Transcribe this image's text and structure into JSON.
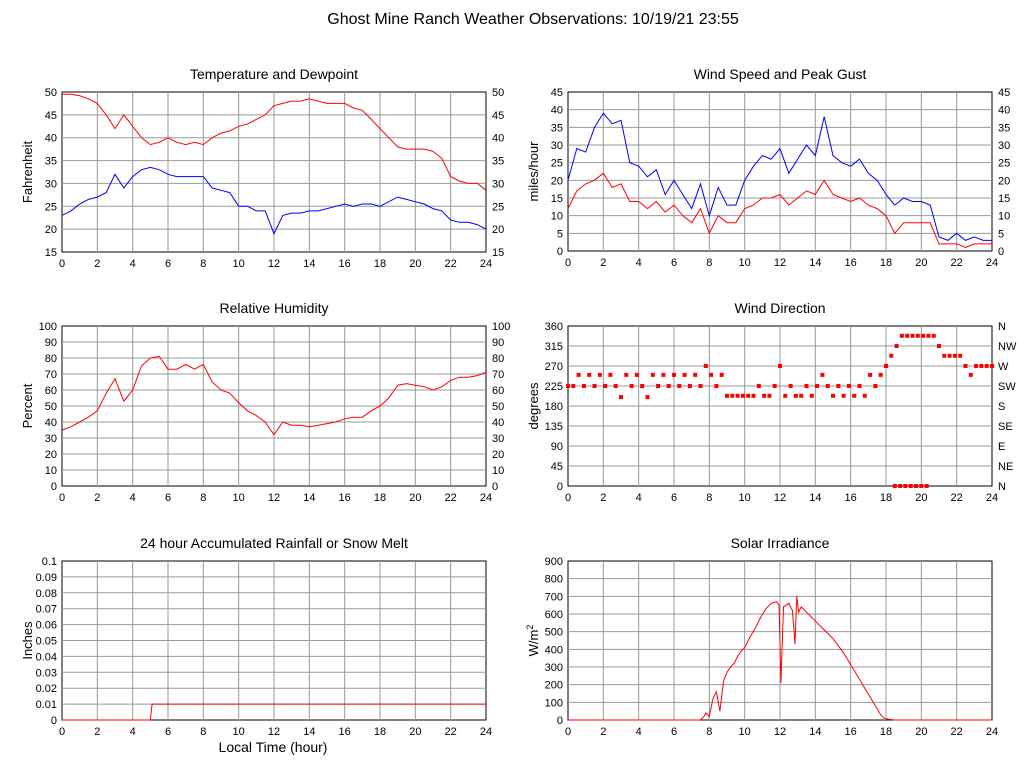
{
  "main_title": "Ghost Mine Ranch Weather Observations: 10/19/21 23:55",
  "x_axis_label": "Local Time (hour)",
  "colors": {
    "red": "#ff0000",
    "blue": "#0000ff",
    "grid": "#999999"
  },
  "chart_data": [
    {
      "id": "temp",
      "type": "line",
      "title": "Temperature and Dewpoint",
      "ylabel": "Fahrenheit",
      "xlim": [
        0,
        24
      ],
      "xticks": [
        "0",
        "2",
        "4",
        "6",
        "8",
        "10",
        "12",
        "14",
        "16",
        "18",
        "20",
        "22",
        "24"
      ],
      "ylim": [
        15,
        50
      ],
      "yticks": [
        "15",
        "20",
        "25",
        "30",
        "35",
        "40",
        "45",
        "50"
      ],
      "right_yticks": [
        "15",
        "20",
        "25",
        "30",
        "35",
        "40",
        "45",
        "50"
      ],
      "grid": true,
      "series": [
        {
          "color": "#ff0000",
          "x": [
            0,
            0.5,
            1,
            1.5,
            2,
            2.5,
            3,
            3.5,
            4,
            4.5,
            5,
            5.5,
            6,
            6.5,
            7,
            7.5,
            8,
            8.5,
            9,
            9.5,
            10,
            10.5,
            11,
            11.5,
            12,
            12.5,
            13,
            13.5,
            14,
            14.5,
            15,
            15.5,
            16,
            16.5,
            17,
            17.5,
            18,
            18.5,
            19,
            19.5,
            20,
            20.5,
            21,
            21.5,
            22,
            22.5,
            23,
            23.5,
            24
          ],
          "y": [
            49.5,
            49.5,
            49.2,
            48.5,
            47.5,
            45,
            42,
            45,
            42.5,
            40,
            38.5,
            39,
            40,
            39,
            38.5,
            39,
            38.5,
            40,
            41,
            41.5,
            42.5,
            43,
            44,
            45,
            47,
            47.5,
            48,
            48,
            48.5,
            48,
            47.5,
            47.5,
            47.5,
            46.5,
            46,
            44,
            42,
            40,
            38,
            37.5,
            37.5,
            37.5,
            37,
            35.5,
            31.5,
            30.5,
            30,
            30,
            28.5
          ]
        },
        {
          "color": "#0000ff",
          "x": [
            0,
            0.5,
            1,
            1.5,
            2,
            2.5,
            3,
            3.5,
            4,
            4.5,
            5,
            5.5,
            6,
            6.5,
            7,
            7.5,
            8,
            8.5,
            9,
            9.5,
            10,
            10.5,
            11,
            11.5,
            12,
            12.5,
            13,
            13.5,
            14,
            14.5,
            15,
            15.5,
            16,
            16.5,
            17,
            17.5,
            18,
            18.5,
            19,
            19.5,
            20,
            20.5,
            21,
            21.5,
            22,
            22.5,
            23,
            23.5,
            24
          ],
          "y": [
            23,
            24,
            25.5,
            26.5,
            27,
            28,
            32,
            29,
            31.5,
            33,
            33.5,
            33,
            32,
            31.5,
            31.5,
            31.5,
            31.5,
            29,
            28.5,
            28,
            25,
            25,
            24,
            24,
            19,
            23,
            23.5,
            23.5,
            24,
            24,
            24.5,
            25,
            25.5,
            25,
            25.5,
            25.5,
            25,
            26,
            27,
            26.5,
            26,
            25.5,
            24.5,
            24,
            22,
            21.5,
            21.5,
            21,
            20
          ]
        }
      ]
    },
    {
      "id": "wind",
      "type": "line",
      "title": "Wind Speed and Peak Gust",
      "ylabel": "miles/hour",
      "xlim": [
        0,
        24
      ],
      "xticks": [
        "0",
        "2",
        "4",
        "6",
        "8",
        "10",
        "12",
        "14",
        "16",
        "18",
        "20",
        "22",
        "24"
      ],
      "ylim": [
        0,
        45
      ],
      "yticks": [
        "0",
        "5",
        "10",
        "15",
        "20",
        "25",
        "30",
        "35",
        "40",
        "45"
      ],
      "right_yticks": [
        "0",
        "5",
        "10",
        "15",
        "20",
        "25",
        "30",
        "35",
        "40",
        "45"
      ],
      "grid": true,
      "series": [
        {
          "color": "#0000ff",
          "x": [
            0,
            0.5,
            1,
            1.5,
            2,
            2.5,
            3,
            3.5,
            4,
            4.5,
            5,
            5.5,
            6,
            6.5,
            7,
            7.5,
            8,
            8.5,
            9,
            9.5,
            10,
            10.5,
            11,
            11.5,
            12,
            12.5,
            13,
            13.5,
            14,
            14.5,
            15,
            15.5,
            16,
            16.5,
            17,
            17.5,
            18,
            18.5,
            19,
            19.5,
            20,
            20.5,
            21,
            21.5,
            22,
            22.5,
            23,
            23.5,
            24
          ],
          "y": [
            20,
            29,
            28,
            35,
            39,
            36,
            37,
            25,
            24,
            21,
            23,
            16,
            20,
            16,
            12,
            19,
            10,
            18,
            13,
            13,
            20,
            24,
            27,
            26,
            29,
            22,
            26,
            30,
            27,
            38,
            27,
            25,
            24,
            26,
            22,
            20,
            16,
            13,
            15,
            14,
            14,
            13,
            4,
            3,
            5,
            3,
            4,
            3,
            3
          ]
        },
        {
          "color": "#ff0000",
          "x": [
            0,
            0.5,
            1,
            1.5,
            2,
            2.5,
            3,
            3.5,
            4,
            4.5,
            5,
            5.5,
            6,
            6.5,
            7,
            7.5,
            8,
            8.5,
            9,
            9.5,
            10,
            10.5,
            11,
            11.5,
            12,
            12.5,
            13,
            13.5,
            14,
            14.5,
            15,
            15.5,
            16,
            16.5,
            17,
            17.5,
            18,
            18.5,
            19,
            19.5,
            20,
            20.5,
            21,
            21.5,
            22,
            22.5,
            23,
            23.5,
            24
          ],
          "y": [
            12,
            17,
            19,
            20,
            22,
            18,
            19,
            14,
            14,
            12,
            14,
            11,
            13,
            10,
            8,
            12,
            5,
            10,
            8,
            8,
            12,
            13,
            15,
            15,
            16,
            13,
            15,
            17,
            16,
            20,
            16,
            15,
            14,
            15,
            13,
            12,
            10,
            5,
            8,
            8,
            8,
            8,
            2,
            2,
            2,
            1,
            2,
            2,
            2
          ]
        }
      ]
    },
    {
      "id": "rh",
      "type": "line",
      "title": "Relative Humidity",
      "ylabel": "Percent",
      "xlim": [
        0,
        24
      ],
      "xticks": [
        "0",
        "2",
        "4",
        "6",
        "8",
        "10",
        "12",
        "14",
        "16",
        "18",
        "20",
        "22",
        "24"
      ],
      "ylim": [
        0,
        100
      ],
      "yticks": [
        "0",
        "10",
        "20",
        "30",
        "40",
        "50",
        "60",
        "70",
        "80",
        "90",
        "100"
      ],
      "right_yticks": [
        "0",
        "10",
        "20",
        "30",
        "40",
        "50",
        "60",
        "70",
        "80",
        "90",
        "100"
      ],
      "grid": true,
      "series": [
        {
          "color": "#ff0000",
          "x": [
            0,
            0.5,
            1,
            1.5,
            2,
            2.5,
            3,
            3.5,
            4,
            4.5,
            5,
            5.5,
            6,
            6.5,
            7,
            7.5,
            8,
            8.5,
            9,
            9.5,
            10,
            10.5,
            11,
            11.5,
            12,
            12.5,
            13,
            13.5,
            14,
            14.5,
            15,
            15.5,
            16,
            16.5,
            17,
            17.5,
            18,
            18.5,
            19,
            19.5,
            20,
            20.5,
            21,
            21.5,
            22,
            22.5,
            23,
            23.5,
            24
          ],
          "y": [
            35,
            37,
            40,
            43,
            47,
            58,
            67,
            53,
            60,
            75,
            80,
            81,
            73,
            73,
            76,
            73,
            76,
            65,
            60,
            58,
            52,
            47,
            44,
            40,
            32,
            40,
            38,
            38,
            37,
            38,
            39,
            40,
            42,
            43,
            43,
            47,
            50,
            55,
            63,
            64,
            63,
            62,
            60,
            62,
            66,
            68,
            68,
            69,
            71
          ]
        }
      ]
    },
    {
      "id": "dir",
      "type": "scatter",
      "title": "Wind Direction",
      "ylabel": "degrees",
      "xlim": [
        0,
        24
      ],
      "xticks": [
        "0",
        "2",
        "4",
        "6",
        "8",
        "10",
        "12",
        "14",
        "16",
        "18",
        "20",
        "22",
        "24"
      ],
      "ylim": [
        0,
        360
      ],
      "yticks": [
        "0",
        "45",
        "90",
        "135",
        "180",
        "225",
        "270",
        "315",
        "360"
      ],
      "right_yticks": [
        "N",
        "NE",
        "E",
        "SE",
        "S",
        "SW",
        "W",
        "NW",
        "N"
      ],
      "grid": true,
      "series": [
        {
          "color": "#ff0000",
          "x": [
            0,
            0.3,
            0.6,
            0.9,
            1.2,
            1.5,
            1.8,
            2.1,
            2.4,
            2.7,
            3.0,
            3.3,
            3.6,
            3.9,
            4.2,
            4.5,
            4.8,
            5.1,
            5.4,
            5.7,
            6.0,
            6.3,
            6.6,
            6.9,
            7.2,
            7.5,
            7.8,
            8.1,
            8.4,
            8.7,
            9.0,
            9.3,
            9.6,
            9.9,
            10.2,
            10.5,
            10.8,
            11.1,
            11.4,
            11.7,
            12.0,
            12.3,
            12.6,
            12.9,
            13.2,
            13.5,
            13.8,
            14.1,
            14.4,
            14.7,
            15.0,
            15.3,
            15.6,
            15.9,
            16.2,
            16.5,
            16.8,
            17.1,
            17.4,
            17.7,
            18.0,
            18.3,
            18.6,
            18.9,
            19.2,
            19.5,
            19.8,
            20.1,
            20.4,
            20.7,
            21.0,
            21.3,
            21.6,
            21.9,
            22.2,
            22.5,
            22.8,
            23.1,
            23.4,
            23.7,
            24.0
          ],
          "y": [
            225,
            225,
            250,
            225,
            250,
            225,
            250,
            225,
            250,
            225,
            200,
            250,
            225,
            250,
            225,
            200,
            250,
            225,
            250,
            225,
            250,
            225,
            250,
            225,
            250,
            225,
            270,
            250,
            225,
            250,
            203,
            203,
            203,
            203,
            203,
            203,
            225,
            203,
            203,
            225,
            270,
            203,
            225,
            203,
            203,
            225,
            203,
            225,
            250,
            225,
            203,
            225,
            203,
            225,
            203,
            225,
            203,
            250,
            225,
            250,
            270,
            293,
            315,
            338,
            338,
            338,
            338,
            338,
            338,
            338,
            315,
            293,
            293,
            293,
            293,
            270,
            250,
            270,
            270,
            270,
            270
          ]
        },
        {
          "color": "#ff0000",
          "x": [
            18.5,
            18.8,
            19.1,
            19.4,
            19.7,
            20.0,
            20.3
          ],
          "y": [
            0,
            0,
            0,
            0,
            0,
            0,
            0
          ]
        }
      ]
    },
    {
      "id": "rain",
      "type": "line",
      "title": "24 hour Accumulated Rainfall or Snow Melt",
      "ylabel": "Inches",
      "xlim": [
        0,
        24
      ],
      "xticks": [
        "0",
        "2",
        "4",
        "6",
        "8",
        "10",
        "12",
        "14",
        "16",
        "18",
        "20",
        "22",
        "24"
      ],
      "ylim": [
        0,
        0.1
      ],
      "yticks": [
        "0",
        "0.01",
        "0.02",
        "0.03",
        "0.04",
        "0.05",
        "0.06",
        "0.07",
        "0.08",
        "0.09",
        "0.1"
      ],
      "right_yticks": [],
      "grid": true,
      "series": [
        {
          "color": "#ff0000",
          "x": [
            0,
            5,
            5.05,
            5.1,
            24
          ],
          "y": [
            0,
            0,
            0.005,
            0.01,
            0.01
          ]
        }
      ]
    },
    {
      "id": "solar",
      "type": "line",
      "title": "Solar Irradiance",
      "ylabel": "W/m",
      "ylabel_sup": "2",
      "xlim": [
        0,
        24
      ],
      "xticks": [
        "0",
        "2",
        "4",
        "6",
        "8",
        "10",
        "12",
        "14",
        "16",
        "18",
        "20",
        "22",
        "24"
      ],
      "ylim": [
        0,
        900
      ],
      "yticks": [
        "0",
        "100",
        "200",
        "300",
        "400",
        "500",
        "600",
        "700",
        "800",
        "900"
      ],
      "right_yticks": [],
      "grid": true,
      "series": [
        {
          "color": "#ff0000",
          "x": [
            0,
            7.5,
            7.7,
            7.8,
            8,
            8.2,
            8.4,
            8.6,
            8.8,
            9,
            9.2,
            9.4,
            9.6,
            9.8,
            10,
            10.3,
            10.6,
            10.9,
            11.2,
            11.5,
            11.8,
            11.95,
            12.05,
            12.2,
            12.5,
            12.7,
            12.85,
            12.95,
            13.05,
            13.2,
            13.5,
            13.8,
            14.1,
            14.4,
            14.7,
            15,
            15.3,
            15.6,
            15.9,
            16.2,
            16.5,
            16.8,
            17.1,
            17.4,
            17.7,
            17.9,
            18.1,
            18.5,
            19,
            24
          ],
          "y": [
            0,
            0,
            20,
            40,
            20,
            120,
            160,
            50,
            220,
            270,
            300,
            320,
            360,
            390,
            410,
            470,
            520,
            580,
            630,
            660,
            670,
            650,
            210,
            640,
            660,
            620,
            430,
            700,
            610,
            640,
            610,
            580,
            550,
            520,
            490,
            460,
            420,
            380,
            330,
            280,
            230,
            180,
            130,
            80,
            30,
            10,
            5,
            0,
            0,
            0
          ]
        }
      ]
    }
  ]
}
